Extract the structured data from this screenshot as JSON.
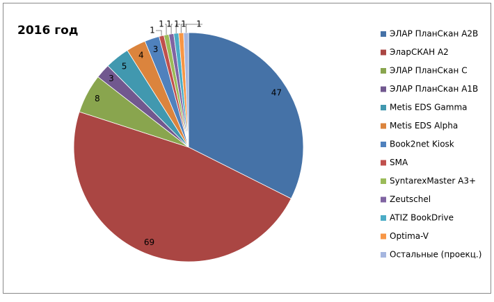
{
  "chart_data": {
    "type": "pie",
    "title": "2016 год",
    "categories": [
      "ЭЛАР ПланСкан А2В",
      "ЭларСКАН А2",
      "ЭЛАР ПланСкан С",
      "ЭЛАР ПланСкан А1В",
      "Metis EDS Gamma",
      "Metis EDS Alpha",
      "Book2net Kiosk",
      "SMA",
      "SyntarexMaster A3+",
      "Zeutschel",
      "ATIZ BookDrive",
      "Optima-V",
      "Остальные (проекц.)"
    ],
    "values": [
      47,
      69,
      8,
      3,
      5,
      4,
      3,
      1,
      1,
      1,
      1,
      1,
      1
    ],
    "colors": [
      "#4572A7",
      "#AA4643",
      "#89A54E",
      "#71588F",
      "#4198AF",
      "#DB843D",
      "#4F81BD",
      "#C0504D",
      "#9BBB59",
      "#8064A2",
      "#4BACC6",
      "#F79646",
      "#A5B6DF"
    ],
    "legend": "right"
  }
}
